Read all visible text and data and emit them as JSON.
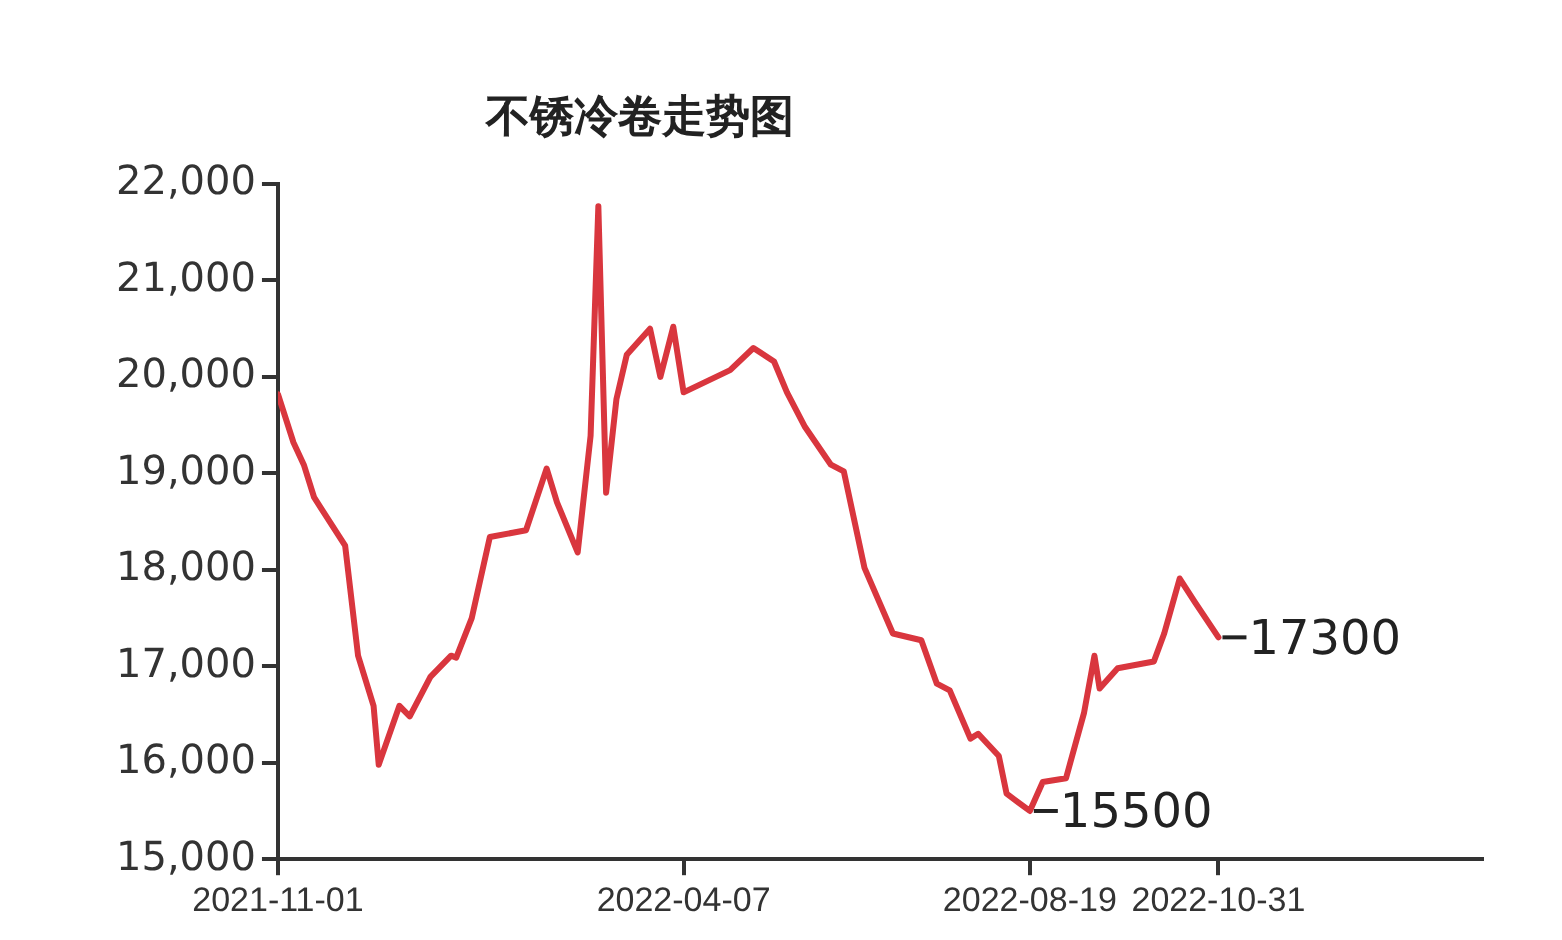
{
  "chart_data": {
    "type": "line",
    "title": "不锈冷卷走势图",
    "x": [
      "2021-11-01",
      "2021-11-07",
      "2021-11-11",
      "2021-11-15",
      "2021-11-27",
      "2021-12-02",
      "2021-12-08",
      "2021-12-10",
      "2021-12-18",
      "2021-12-22",
      "2021-12-30",
      "2022-01-07",
      "2022-01-09",
      "2022-01-15",
      "2022-01-22",
      "2022-02-05",
      "2022-02-13",
      "2022-02-17",
      "2022-02-25",
      "2022-03-02",
      "2022-03-05",
      "2022-03-08",
      "2022-03-12",
      "2022-03-16",
      "2022-03-25",
      "2022-03-29",
      "2022-04-03",
      "2022-04-07",
      "2022-04-25",
      "2022-05-04",
      "2022-05-12",
      "2022-05-17",
      "2022-05-24",
      "2022-06-03",
      "2022-06-08",
      "2022-06-16",
      "2022-06-27",
      "2022-07-08",
      "2022-07-14",
      "2022-07-19",
      "2022-07-27",
      "2022-07-30",
      "2022-08-07",
      "2022-08-10",
      "2022-08-19",
      "2022-08-24",
      "2022-09-02",
      "2022-09-09",
      "2022-09-13",
      "2022-09-15",
      "2022-09-22",
      "2022-10-06",
      "2022-10-10",
      "2022-10-16",
      "2022-10-22",
      "2022-10-31"
    ],
    "series": [
      {
        "color": "#d9363e",
        "values": [
          19820,
          19320,
          19090,
          18750,
          18250,
          17110,
          16590,
          15980,
          16590,
          16480,
          16890,
          17110,
          17090,
          17500,
          18340,
          18410,
          19050,
          18700,
          18180,
          19390,
          21770,
          18800,
          19770,
          20230,
          20500,
          20000,
          20520,
          19840,
          20070,
          20300,
          20160,
          19840,
          19480,
          19090,
          19020,
          18020,
          17340,
          17270,
          16820,
          16750,
          16250,
          16300,
          16070,
          15680,
          15500,
          15800,
          15840,
          16520,
          17110,
          16770,
          16980,
          17050,
          17340,
          17910,
          17660,
          17300
        ]
      }
    ],
    "xlim": [
      "2021-11-01",
      "2023-02-10"
    ],
    "xticks": [
      "2021-11-01",
      "2022-04-07",
      "2022-08-19",
      "2022-10-31"
    ],
    "ylim": [
      15000,
      22000
    ],
    "yticks": [
      {
        "value": 15000,
        "label": "15,000"
      },
      {
        "value": 16000,
        "label": "16,000"
      },
      {
        "value": 17000,
        "label": "17,000"
      },
      {
        "value": 18000,
        "label": "18,000"
      },
      {
        "value": 19000,
        "label": "19,000"
      },
      {
        "value": 20000,
        "label": "20,000"
      },
      {
        "value": 21000,
        "label": "21,000"
      },
      {
        "value": 22000,
        "label": "22,000"
      }
    ],
    "annotations": [
      {
        "text": "15500",
        "x": "2022-08-19",
        "y": 15500
      },
      {
        "text": "17300",
        "x": "2022-10-31",
        "y": 17300
      }
    ],
    "grid": false,
    "legend": false,
    "marker": "none",
    "line_style": "solid"
  }
}
